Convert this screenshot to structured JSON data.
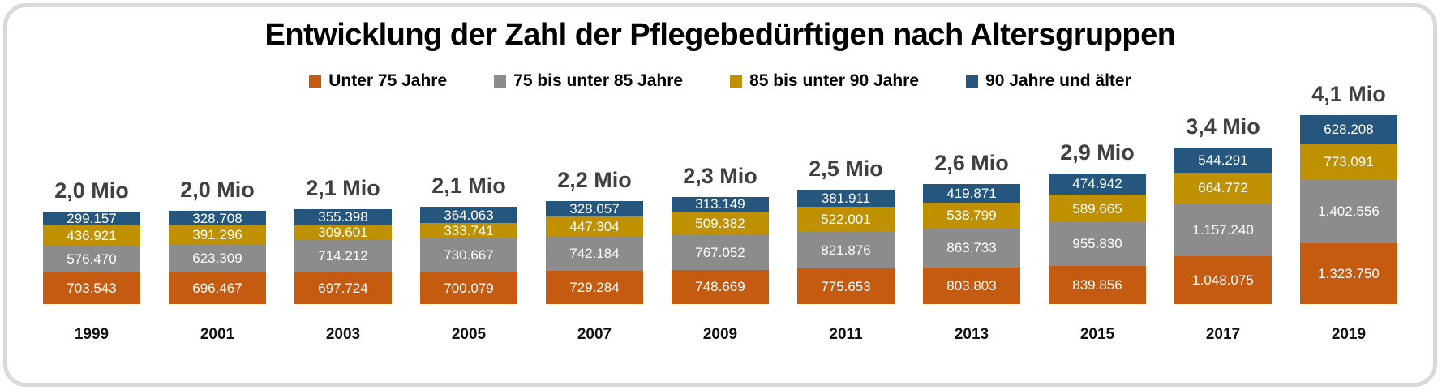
{
  "title": "Entwicklung der Zahl der Pflegebedürftigen nach Altersgruppen",
  "chart_data": {
    "type": "bar",
    "stacked": true,
    "title": "Entwicklung der Zahl der Pflegebedürftigen nach Altersgruppen",
    "categories": [
      "1999",
      "2001",
      "2003",
      "2005",
      "2007",
      "2009",
      "2011",
      "2013",
      "2015",
      "2017",
      "2019"
    ],
    "series": [
      {
        "name": "Unter 75 Jahre",
        "color": "#C55A11",
        "values": [
          703543,
          696467,
          697724,
          700079,
          729284,
          748669,
          775653,
          803803,
          839856,
          1048075,
          1323750
        ],
        "labels": [
          "703.543",
          "696.467",
          "697.724",
          "700.079",
          "729.284",
          "748.669",
          "775.653",
          "803.803",
          "839.856",
          "1.048.075",
          "1.323.750"
        ]
      },
      {
        "name": "75 bis unter 85 Jahre",
        "color": "#8C8C8C",
        "values": [
          576470,
          623309,
          714212,
          730667,
          742184,
          767052,
          821876,
          863733,
          955830,
          1157240,
          1402556
        ],
        "labels": [
          "576.470",
          "623.309",
          "714.212",
          "730.667",
          "742.184",
          "767.052",
          "821.876",
          "863.733",
          "955.830",
          "1.157.240",
          "1.402.556"
        ]
      },
      {
        "name": "85 bis unter 90 Jahre",
        "color": "#BF9000",
        "values": [
          436921,
          391296,
          309601,
          333741,
          447304,
          509382,
          522001,
          538799,
          589665,
          664772,
          773091
        ],
        "labels": [
          "436.921",
          "391.296",
          "309.601",
          "333.741",
          "447.304",
          "509.382",
          "522.001",
          "538.799",
          "589.665",
          "664.772",
          "773.091"
        ]
      },
      {
        "name": "90 Jahre und älter",
        "color": "#25567E",
        "values": [
          299157,
          328708,
          355398,
          364063,
          328057,
          313149,
          381911,
          419871,
          474942,
          544291,
          628208
        ],
        "labels": [
          "299.157",
          "328.708",
          "355.398",
          "364.063",
          "328.057",
          "313.149",
          "381.911",
          "419.871",
          "474.942",
          "544.291",
          "628.208"
        ]
      }
    ],
    "stack_order_top_to_bottom": [
      "90 Jahre und älter",
      "85 bis unter 90 Jahre",
      "75 bis unter 85 Jahre",
      "Unter 75 Jahre"
    ],
    "totals": [
      "2,0 Mio",
      "2,0 Mio",
      "2,1 Mio",
      "2,1 Mio",
      "2,2 Mio",
      "2,3 Mio",
      "2,5 Mio",
      "2,6 Mio",
      "2,9 Mio",
      "3,4 Mio",
      "4,1 Mio"
    ],
    "total_values": [
      2016091,
      2039780,
      2076935,
      2128550,
      2246829,
      2338252,
      2501441,
      2626206,
      2860293,
      3414378,
      4127605
    ],
    "value_labels_color": "#FFFFFF",
    "total_label_color": "#404040",
    "legend_position": "top",
    "axes_visible": false,
    "xlabel": "",
    "ylabel": ""
  }
}
